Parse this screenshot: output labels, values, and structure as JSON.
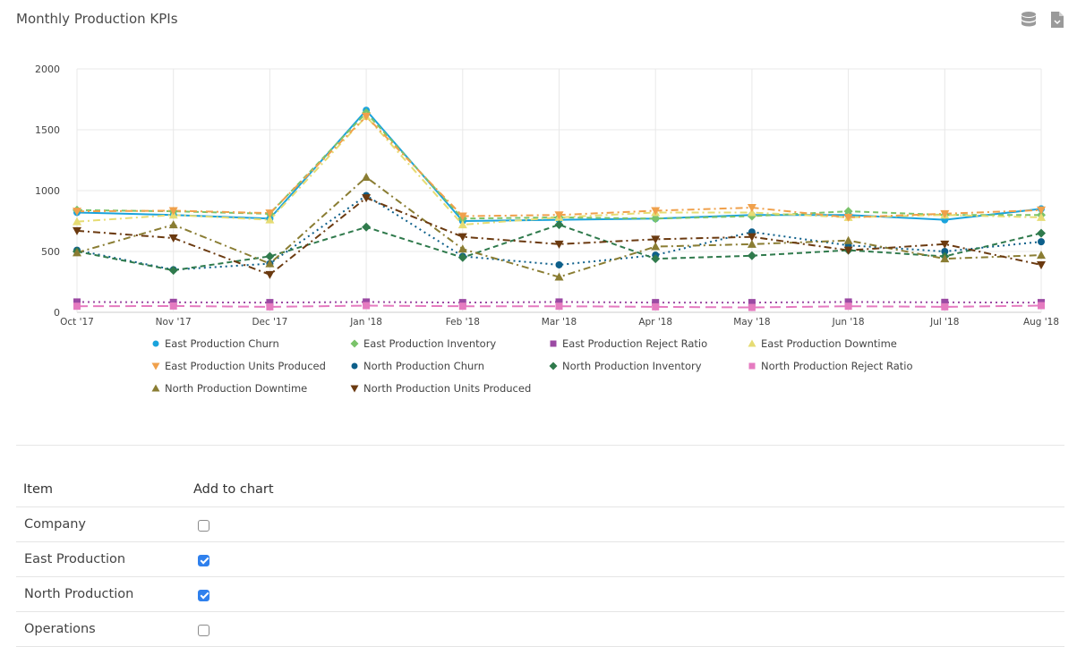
{
  "title": "Monthly Production KPIs",
  "toolbar": {
    "icons": [
      "database-icon",
      "export-file-icon"
    ]
  },
  "chart_data": {
    "type": "line",
    "title": "",
    "xlabel": "",
    "ylabel": "",
    "x": [
      "Oct '17",
      "Nov '17",
      "Dec '17",
      "Jan '18",
      "Feb '18",
      "Mar '18",
      "Apr '18",
      "May '18",
      "Jun '18",
      "Jul '18",
      "Aug '18"
    ],
    "ylim": [
      0,
      2000
    ],
    "yticks": [
      0,
      500,
      1000,
      1500,
      2000
    ],
    "grid": true,
    "legend_position": "bottom",
    "series": [
      {
        "name": "East Production Churn",
        "color": "#1aa3dc",
        "marker": "circle",
        "dash": "solid",
        "values": [
          820,
          800,
          770,
          1660,
          750,
          760,
          770,
          800,
          800,
          760,
          850
        ]
      },
      {
        "name": "East Production Inventory",
        "color": "#7ac36a",
        "marker": "diamond",
        "dash": "dashed",
        "values": [
          840,
          830,
          810,
          1640,
          770,
          780,
          770,
          790,
          830,
          800,
          800
        ]
      },
      {
        "name": "East Production Reject Ratio",
        "color": "#9b4aa3",
        "marker": "square",
        "dash": "dotted",
        "values": [
          85,
          82,
          80,
          85,
          80,
          85,
          80,
          80,
          85,
          82,
          80
        ]
      },
      {
        "name": "East Production Downtime",
        "color": "#e6dc73",
        "marker": "triangle",
        "dash": "dashdot",
        "values": [
          745,
          800,
          760,
          1610,
          720,
          780,
          820,
          820,
          780,
          800,
          780
        ]
      },
      {
        "name": "East Production Units Produced",
        "color": "#f0a04b",
        "marker": "triangle-down",
        "dash": "dashdot",
        "values": [
          830,
          835,
          815,
          1610,
          790,
          800,
          835,
          860,
          780,
          810,
          840
        ]
      },
      {
        "name": "North Production Churn",
        "color": "#0d5f8a",
        "marker": "circle",
        "dash": "dotted",
        "values": [
          510,
          350,
          400,
          960,
          460,
          390,
          470,
          660,
          550,
          500,
          580
        ]
      },
      {
        "name": "North Production Inventory",
        "color": "#2f7a4c",
        "marker": "diamond",
        "dash": "dashed",
        "values": [
          500,
          345,
          460,
          700,
          450,
          720,
          440,
          465,
          510,
          460,
          650
        ]
      },
      {
        "name": "North Production Reject Ratio",
        "color": "#e57bc0",
        "marker": "square",
        "dash": "longdash",
        "values": [
          50,
          52,
          45,
          55,
          50,
          50,
          45,
          40,
          50,
          45,
          55
        ]
      },
      {
        "name": "North Production Downtime",
        "color": "#8a7d33",
        "marker": "triangle",
        "dash": "dashdot",
        "values": [
          490,
          720,
          400,
          1110,
          520,
          290,
          540,
          560,
          590,
          440,
          470
        ]
      },
      {
        "name": "North Production Units Produced",
        "color": "#6b3a10",
        "marker": "triangle-down",
        "dash": "dashdot",
        "values": [
          670,
          610,
          310,
          940,
          620,
          560,
          600,
          620,
          510,
          560,
          390
        ]
      }
    ]
  },
  "table": {
    "headers": {
      "item": "Item",
      "add": "Add to chart"
    },
    "rows": [
      {
        "label": "Company",
        "checked": false
      },
      {
        "label": "East Production",
        "checked": true
      },
      {
        "label": "North Production",
        "checked": true
      },
      {
        "label": "Operations",
        "checked": false
      }
    ]
  }
}
